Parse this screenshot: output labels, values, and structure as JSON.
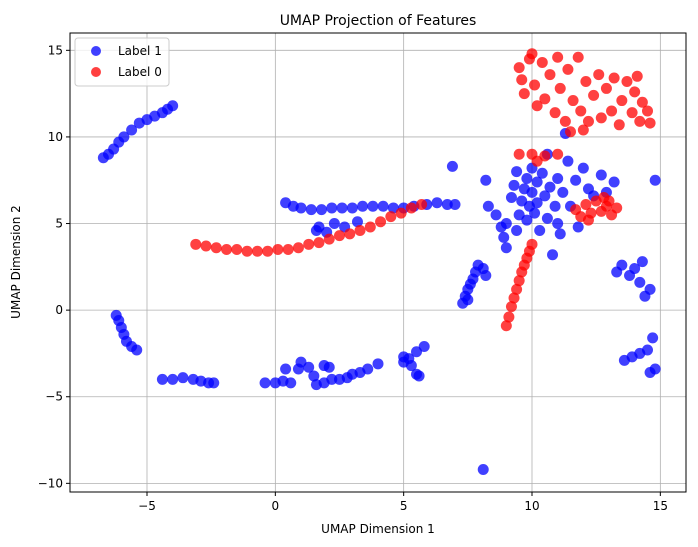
{
  "chart_data": {
    "type": "scatter",
    "title": "UMAP Projection of Features",
    "xlabel": "UMAP Dimension 1",
    "ylabel": "UMAP Dimension 2",
    "xlim": [
      -8.0,
      16.0
    ],
    "ylim": [
      -10.5,
      16.0
    ],
    "xticks": [
      -5,
      0,
      5,
      10,
      15
    ],
    "yticks": [
      -10,
      -5,
      0,
      5,
      10,
      15
    ],
    "grid": true,
    "legend_position": "top-left",
    "series": [
      {
        "name": "Label 1",
        "color": "#0000ff",
        "points": [
          [
            -6.7,
            8.8
          ],
          [
            -6.5,
            9.0
          ],
          [
            -6.3,
            9.3
          ],
          [
            -6.1,
            9.7
          ],
          [
            -5.9,
            10.0
          ],
          [
            -5.6,
            10.4
          ],
          [
            -5.3,
            10.8
          ],
          [
            -5.0,
            11.0
          ],
          [
            -4.7,
            11.2
          ],
          [
            -4.4,
            11.4
          ],
          [
            -4.2,
            11.6
          ],
          [
            -4.0,
            11.8
          ],
          [
            -6.2,
            -0.3
          ],
          [
            -6.1,
            -0.6
          ],
          [
            -6.0,
            -1.0
          ],
          [
            -5.9,
            -1.4
          ],
          [
            -5.8,
            -1.8
          ],
          [
            -5.6,
            -2.1
          ],
          [
            -5.4,
            -2.3
          ],
          [
            -4.4,
            -4.0
          ],
          [
            -4.0,
            -4.0
          ],
          [
            -3.6,
            -3.9
          ],
          [
            -3.2,
            -4.0
          ],
          [
            -2.9,
            -4.1
          ],
          [
            -2.6,
            -4.2
          ],
          [
            -2.4,
            -4.2
          ],
          [
            -0.4,
            -4.2
          ],
          [
            0.0,
            -4.2
          ],
          [
            0.3,
            -4.1
          ],
          [
            0.6,
            -4.2
          ],
          [
            0.4,
            -3.4
          ],
          [
            0.9,
            -3.4
          ],
          [
            1.0,
            -3.0
          ],
          [
            1.3,
            -3.3
          ],
          [
            1.5,
            -3.8
          ],
          [
            1.6,
            -4.3
          ],
          [
            1.9,
            -4.2
          ],
          [
            2.2,
            -4.0
          ],
          [
            2.5,
            -4.0
          ],
          [
            2.8,
            -3.9
          ],
          [
            1.9,
            -3.2
          ],
          [
            2.1,
            -3.3
          ],
          [
            3.0,
            -3.7
          ],
          [
            3.3,
            -3.6
          ],
          [
            3.6,
            -3.4
          ],
          [
            4.0,
            -3.1
          ],
          [
            5.0,
            -3.0
          ],
          [
            5.2,
            -2.8
          ],
          [
            5.5,
            -2.4
          ],
          [
            5.8,
            -2.1
          ],
          [
            5.3,
            -3.2
          ],
          [
            5.5,
            -3.7
          ],
          [
            5.6,
            -3.8
          ],
          [
            5.0,
            -2.7
          ],
          [
            0.4,
            6.2
          ],
          [
            0.7,
            6.0
          ],
          [
            1.0,
            5.9
          ],
          [
            1.4,
            5.8
          ],
          [
            1.8,
            5.8
          ],
          [
            2.2,
            5.9
          ],
          [
            2.6,
            5.9
          ],
          [
            3.0,
            5.9
          ],
          [
            3.4,
            6.0
          ],
          [
            3.8,
            6.0
          ],
          [
            4.2,
            6.0
          ],
          [
            4.6,
            5.9
          ],
          [
            5.0,
            5.9
          ],
          [
            5.4,
            6.0
          ],
          [
            5.9,
            6.1
          ],
          [
            6.3,
            6.2
          ],
          [
            6.7,
            6.1
          ],
          [
            7.0,
            6.1
          ],
          [
            1.7,
            4.8
          ],
          [
            2.0,
            4.5
          ],
          [
            2.3,
            5.0
          ],
          [
            2.7,
            4.8
          ],
          [
            3.2,
            5.1
          ],
          [
            1.6,
            4.6
          ],
          [
            6.9,
            8.3
          ],
          [
            8.2,
            7.5
          ],
          [
            8.1,
            -9.2
          ],
          [
            7.3,
            0.4
          ],
          [
            7.4,
            0.8
          ],
          [
            7.5,
            1.2
          ],
          [
            7.6,
            1.5
          ],
          [
            7.7,
            1.8
          ],
          [
            7.8,
            2.2
          ],
          [
            7.9,
            2.6
          ],
          [
            8.1,
            2.4
          ],
          [
            8.2,
            2.0
          ],
          [
            7.5,
            0.6
          ],
          [
            8.3,
            6.0
          ],
          [
            8.6,
            5.5
          ],
          [
            8.8,
            4.8
          ],
          [
            8.9,
            4.2
          ],
          [
            9.0,
            3.6
          ],
          [
            9.0,
            5.0
          ],
          [
            9.2,
            6.5
          ],
          [
            9.3,
            7.2
          ],
          [
            9.4,
            8.0
          ],
          [
            9.4,
            4.6
          ],
          [
            9.5,
            5.5
          ],
          [
            9.6,
            6.3
          ],
          [
            9.7,
            7.0
          ],
          [
            9.8,
            7.6
          ],
          [
            9.8,
            5.2
          ],
          [
            9.9,
            6.0
          ],
          [
            10.0,
            8.2
          ],
          [
            10.0,
            6.8
          ],
          [
            10.1,
            5.6
          ],
          [
            10.2,
            7.4
          ],
          [
            10.2,
            6.2
          ],
          [
            10.3,
            4.6
          ],
          [
            10.4,
            7.9
          ],
          [
            10.5,
            6.6
          ],
          [
            10.6,
            5.3
          ],
          [
            10.7,
            7.1
          ],
          [
            10.8,
            3.2
          ],
          [
            10.9,
            6.0
          ],
          [
            11.0,
            7.6
          ],
          [
            11.0,
            5.0
          ],
          [
            11.1,
            4.4
          ],
          [
            11.2,
            6.8
          ],
          [
            11.4,
            8.6
          ],
          [
            11.5,
            6.0
          ],
          [
            11.7,
            7.5
          ],
          [
            11.8,
            4.8
          ],
          [
            12.0,
            8.2
          ],
          [
            12.2,
            7.0
          ],
          [
            12.4,
            6.6
          ],
          [
            12.7,
            7.8
          ],
          [
            12.9,
            6.8
          ],
          [
            13.2,
            7.4
          ],
          [
            10.6,
            9.0
          ],
          [
            11.3,
            10.2
          ],
          [
            13.3,
            2.2
          ],
          [
            13.5,
            2.6
          ],
          [
            13.8,
            2.0
          ],
          [
            14.0,
            2.4
          ],
          [
            14.2,
            1.6
          ],
          [
            14.4,
            0.8
          ],
          [
            14.6,
            1.2
          ],
          [
            14.3,
            2.8
          ],
          [
            13.6,
            -2.9
          ],
          [
            13.9,
            -2.7
          ],
          [
            14.2,
            -2.5
          ],
          [
            14.5,
            -2.3
          ],
          [
            14.7,
            -1.6
          ],
          [
            14.6,
            -3.6
          ],
          [
            14.8,
            -3.4
          ],
          [
            14.8,
            7.5
          ]
        ]
      },
      {
        "name": "Label 0",
        "color": "#ff0000",
        "points": [
          [
            -3.1,
            3.8
          ],
          [
            -2.7,
            3.7
          ],
          [
            -2.3,
            3.6
          ],
          [
            -1.9,
            3.5
          ],
          [
            -1.5,
            3.5
          ],
          [
            -1.1,
            3.4
          ],
          [
            -0.7,
            3.4
          ],
          [
            -0.3,
            3.4
          ],
          [
            0.1,
            3.5
          ],
          [
            0.5,
            3.5
          ],
          [
            0.9,
            3.6
          ],
          [
            1.3,
            3.8
          ],
          [
            1.7,
            3.9
          ],
          [
            2.1,
            4.1
          ],
          [
            2.5,
            4.3
          ],
          [
            2.9,
            4.4
          ],
          [
            3.3,
            4.6
          ],
          [
            3.7,
            4.8
          ],
          [
            4.1,
            5.1
          ],
          [
            4.5,
            5.4
          ],
          [
            4.9,
            5.6
          ],
          [
            5.3,
            5.9
          ],
          [
            5.7,
            6.1
          ],
          [
            9.0,
            -0.9
          ],
          [
            9.1,
            -0.4
          ],
          [
            9.2,
            0.2
          ],
          [
            9.3,
            0.7
          ],
          [
            9.4,
            1.2
          ],
          [
            9.5,
            1.7
          ],
          [
            9.6,
            2.2
          ],
          [
            9.7,
            2.6
          ],
          [
            9.8,
            3.0
          ],
          [
            9.9,
            3.4
          ],
          [
            10.0,
            3.8
          ],
          [
            9.5,
            9.0
          ],
          [
            10.0,
            9.0
          ],
          [
            10.5,
            8.9
          ],
          [
            11.0,
            9.0
          ],
          [
            10.2,
            8.6
          ],
          [
            11.7,
            5.8
          ],
          [
            11.9,
            5.4
          ],
          [
            12.1,
            6.1
          ],
          [
            12.3,
            5.6
          ],
          [
            12.5,
            6.3
          ],
          [
            12.7,
            5.7
          ],
          [
            12.9,
            6.0
          ],
          [
            13.1,
            5.5
          ],
          [
            13.3,
            5.9
          ],
          [
            12.2,
            5.2
          ],
          [
            12.8,
            6.5
          ],
          [
            13.0,
            6.3
          ],
          [
            9.5,
            14.0
          ],
          [
            9.6,
            13.3
          ],
          [
            9.7,
            12.5
          ],
          [
            9.9,
            14.5
          ],
          [
            10.1,
            13.0
          ],
          [
            10.2,
            11.8
          ],
          [
            10.4,
            14.3
          ],
          [
            10.5,
            12.2
          ],
          [
            10.7,
            13.6
          ],
          [
            10.9,
            11.4
          ],
          [
            11.0,
            14.6
          ],
          [
            11.1,
            12.8
          ],
          [
            11.3,
            10.9
          ],
          [
            11.4,
            13.9
          ],
          [
            11.6,
            12.1
          ],
          [
            11.8,
            14.6
          ],
          [
            11.9,
            11.5
          ],
          [
            12.1,
            13.2
          ],
          [
            12.2,
            10.9
          ],
          [
            12.4,
            12.4
          ],
          [
            12.6,
            13.6
          ],
          [
            12.7,
            11.1
          ],
          [
            12.9,
            12.8
          ],
          [
            13.1,
            11.5
          ],
          [
            13.2,
            13.4
          ],
          [
            13.4,
            10.7
          ],
          [
            13.5,
            12.1
          ],
          [
            13.7,
            13.2
          ],
          [
            13.9,
            11.4
          ],
          [
            14.0,
            12.6
          ],
          [
            14.2,
            10.9
          ],
          [
            14.3,
            12.0
          ],
          [
            14.5,
            11.5
          ],
          [
            14.6,
            10.8
          ],
          [
            14.1,
            13.5
          ],
          [
            12.0,
            10.4
          ],
          [
            10.0,
            14.8
          ],
          [
            11.5,
            10.3
          ]
        ]
      }
    ]
  }
}
